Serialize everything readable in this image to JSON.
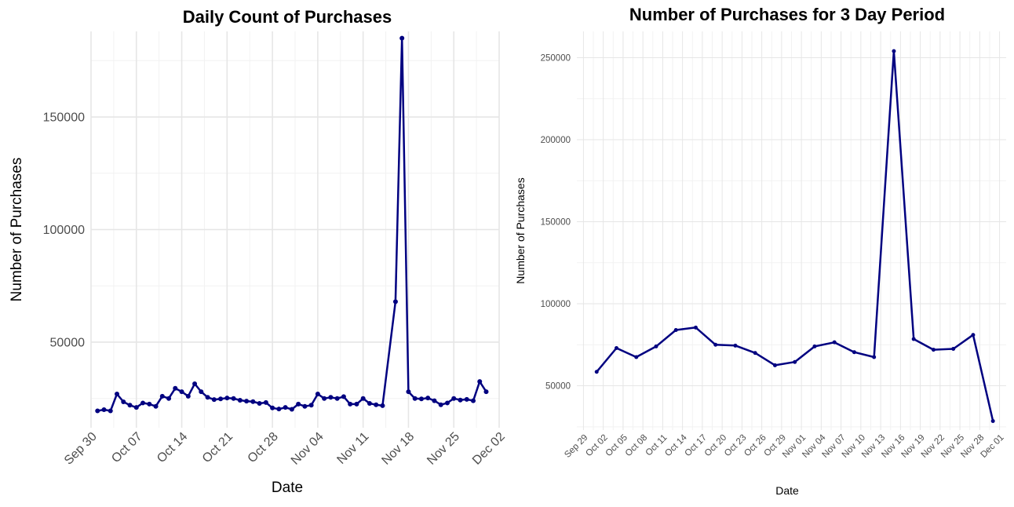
{
  "chart_data": [
    {
      "type": "line",
      "title": "Daily Count of Purchases",
      "xlabel": "Date",
      "ylabel": "Number of Purchases",
      "grid": true,
      "legend": "none",
      "line_color": "#000080",
      "point_color": "#000080",
      "x_ticks": [
        "Sep 30",
        "Oct 07",
        "Oct 14",
        "Oct 21",
        "Oct 28",
        "Nov 04",
        "Nov 11",
        "Nov 18",
        "Nov 25",
        "Dec 02"
      ],
      "y_ticks": [
        50000,
        100000,
        150000
      ],
      "y_tick_labels": [
        "50000",
        "100000",
        "150000"
      ],
      "xlim": [
        "2022-09-30",
        "2022-12-02"
      ],
      "ylim": [
        12000,
        188000
      ],
      "x": [
        "2022-10-01",
        "2022-10-02",
        "2022-10-03",
        "2022-10-04",
        "2022-10-05",
        "2022-10-06",
        "2022-10-07",
        "2022-10-08",
        "2022-10-09",
        "2022-10-10",
        "2022-10-11",
        "2022-10-12",
        "2022-10-13",
        "2022-10-14",
        "2022-10-15",
        "2022-10-16",
        "2022-10-17",
        "2022-10-18",
        "2022-10-19",
        "2022-10-20",
        "2022-10-21",
        "2022-10-22",
        "2022-10-23",
        "2022-10-24",
        "2022-10-25",
        "2022-10-26",
        "2022-10-27",
        "2022-10-28",
        "2022-10-29",
        "2022-10-30",
        "2022-10-31",
        "2022-11-01",
        "2022-11-02",
        "2022-11-03",
        "2022-11-04",
        "2022-11-05",
        "2022-11-06",
        "2022-11-07",
        "2022-11-08",
        "2022-11-09",
        "2022-11-10",
        "2022-11-11",
        "2022-11-12",
        "2022-11-13",
        "2022-11-14",
        "2022-11-16",
        "2022-11-17",
        "2022-11-18",
        "2022-11-19",
        "2022-11-20",
        "2022-11-21",
        "2022-11-22",
        "2022-11-23",
        "2022-11-24",
        "2022-11-25",
        "2022-11-26",
        "2022-11-27",
        "2022-11-28",
        "2022-11-29",
        "2022-11-30"
      ],
      "y": [
        19500,
        20000,
        19500,
        27000,
        23500,
        22000,
        21000,
        23000,
        22500,
        21500,
        26000,
        25000,
        29500,
        28000,
        26000,
        31500,
        28000,
        25500,
        24500,
        24800,
        25200,
        25000,
        24200,
        23800,
        23600,
        22800,
        23200,
        20800,
        20300,
        21000,
        20200,
        22500,
        21500,
        22000,
        27000,
        25000,
        25500,
        25000,
        25800,
        22500,
        22500,
        25000,
        22800,
        22200,
        21800,
        68000,
        185000,
        28000,
        25000,
        24800,
        25200,
        24000,
        22200,
        23000,
        25000,
        24300,
        24600,
        24000,
        32500,
        28000
      ]
    },
    {
      "type": "line",
      "title": "Number of Purchases for 3 Day Period",
      "xlabel": "Date",
      "ylabel": "Number of Purchases",
      "grid": true,
      "legend": "none",
      "line_color": "#000080",
      "point_color": "#000080",
      "x_ticks": [
        "Sep 29",
        "Oct 02",
        "Oct 05",
        "Oct 08",
        "Oct 11",
        "Oct 14",
        "Oct 17",
        "Oct 20",
        "Oct 23",
        "Oct 26",
        "Oct 29",
        "Nov 01",
        "Nov 04",
        "Nov 07",
        "Nov 10",
        "Nov 13",
        "Nov 16",
        "Nov 19",
        "Nov 22",
        "Nov 25",
        "Nov 28",
        "Dec 01"
      ],
      "y_ticks": [
        50000,
        100000,
        150000,
        200000,
        250000
      ],
      "y_tick_labels": [
        "50000",
        "100000",
        "150000",
        "200000",
        "250000"
      ],
      "xlim": [
        "2022-09-28",
        "2022-12-02"
      ],
      "ylim": [
        23000,
        266000
      ],
      "x": [
        "2022-10-01",
        "2022-10-04",
        "2022-10-07",
        "2022-10-10",
        "2022-10-13",
        "2022-10-16",
        "2022-10-19",
        "2022-10-22",
        "2022-10-25",
        "2022-10-28",
        "2022-10-31",
        "2022-11-03",
        "2022-11-06",
        "2022-11-09",
        "2022-11-12",
        "2022-11-15",
        "2022-11-18",
        "2022-11-21",
        "2022-11-24",
        "2022-11-27",
        "2022-11-30"
      ],
      "y": [
        58500,
        73000,
        67500,
        74000,
        84000,
        85500,
        75000,
        74500,
        70000,
        62500,
        64500,
        74000,
        76500,
        70500,
        67500,
        254000,
        78500,
        72000,
        72500,
        81000,
        28500
      ]
    }
  ]
}
